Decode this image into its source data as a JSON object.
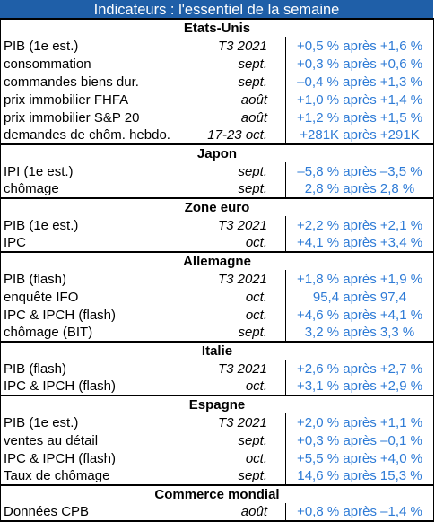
{
  "title": "Indicateurs : l'essentiel de la semaine",
  "colors": {
    "header_bg": "#1f5fa8",
    "value_text": "#2e7bd6"
  },
  "sections": [
    {
      "name": "Etats-Unis",
      "rows": [
        {
          "indicator": "PIB (1e est.)",
          "period": "T3 2021",
          "value": "+0,5 % après +1,6 %"
        },
        {
          "indicator": "consommation",
          "period": "sept.",
          "value": "+0,3 % après +0,6 %"
        },
        {
          "indicator": "commandes biens dur.",
          "period": "sept.",
          "value": "–0,4 % après +1,3 %"
        },
        {
          "indicator": "prix immobilier FHFA",
          "period": "août",
          "value": "+1,0 % après +1,4 %"
        },
        {
          "indicator": "prix immobilier S&P 20",
          "period": "août",
          "value": "+1,2 % après +1,5 %"
        },
        {
          "indicator": "demandes de chôm. hebdo.",
          "period": "17-23 oct.",
          "value": "+281K après +291K"
        }
      ]
    },
    {
      "name": "Japon",
      "rows": [
        {
          "indicator": "IPI (1e est.)",
          "period": "sept.",
          "value": "–5,8 % après –3,5 %"
        },
        {
          "indicator": "chômage",
          "period": "sept.",
          "value": "2,8 % après 2,8 %"
        }
      ]
    },
    {
      "name": "Zone euro",
      "rows": [
        {
          "indicator": "PIB (1e est.)",
          "period": "T3 2021",
          "value": "+2,2 % après +2,1 %"
        },
        {
          "indicator": "IPC",
          "period": "oct.",
          "value": "+4,1 % après +3,4 %"
        }
      ]
    },
    {
      "name": "Allemagne",
      "rows": [
        {
          "indicator": "PIB (flash)",
          "period": "T3 2021",
          "value": "+1,8 % après +1,9 %"
        },
        {
          "indicator": "enquête IFO",
          "period": "oct.",
          "value": "95,4 après 97,4"
        },
        {
          "indicator": "IPC & IPCH (flash)",
          "period": "oct.",
          "value": "+4,6 % après +4,1 %"
        },
        {
          "indicator": "chômage (BIT)",
          "period": "sept.",
          "value": "3,2 % après 3,3 %"
        }
      ]
    },
    {
      "name": "Italie",
      "rows": [
        {
          "indicator": "PIB (flash)",
          "period": "T3 2021",
          "value": "+2,6 % après +2,7 %"
        },
        {
          "indicator": "IPC & IPCH (flash)",
          "period": "oct.",
          "value": "+3,1 % après +2,9 %"
        }
      ]
    },
    {
      "name": "Espagne",
      "rows": [
        {
          "indicator": "PIB (1e est.)",
          "period": "T3 2021",
          "value": "+2,0 % après +1,1 %"
        },
        {
          "indicator": "ventes au détail",
          "period": "sept.",
          "value": "+0,3 % après –0,1 %"
        },
        {
          "indicator": "IPC & IPCH (flash)",
          "period": "oct.",
          "value": "+5,5 % après +4,0 %"
        },
        {
          "indicator": "Taux de chômage",
          "period": "sept.",
          "value": "14,6 % après 15,3 %"
        }
      ]
    },
    {
      "name": "Commerce mondial",
      "rows": [
        {
          "indicator": "Données CPB",
          "period": "août",
          "value": "+0,8 % après –1,4 %"
        }
      ]
    }
  ]
}
